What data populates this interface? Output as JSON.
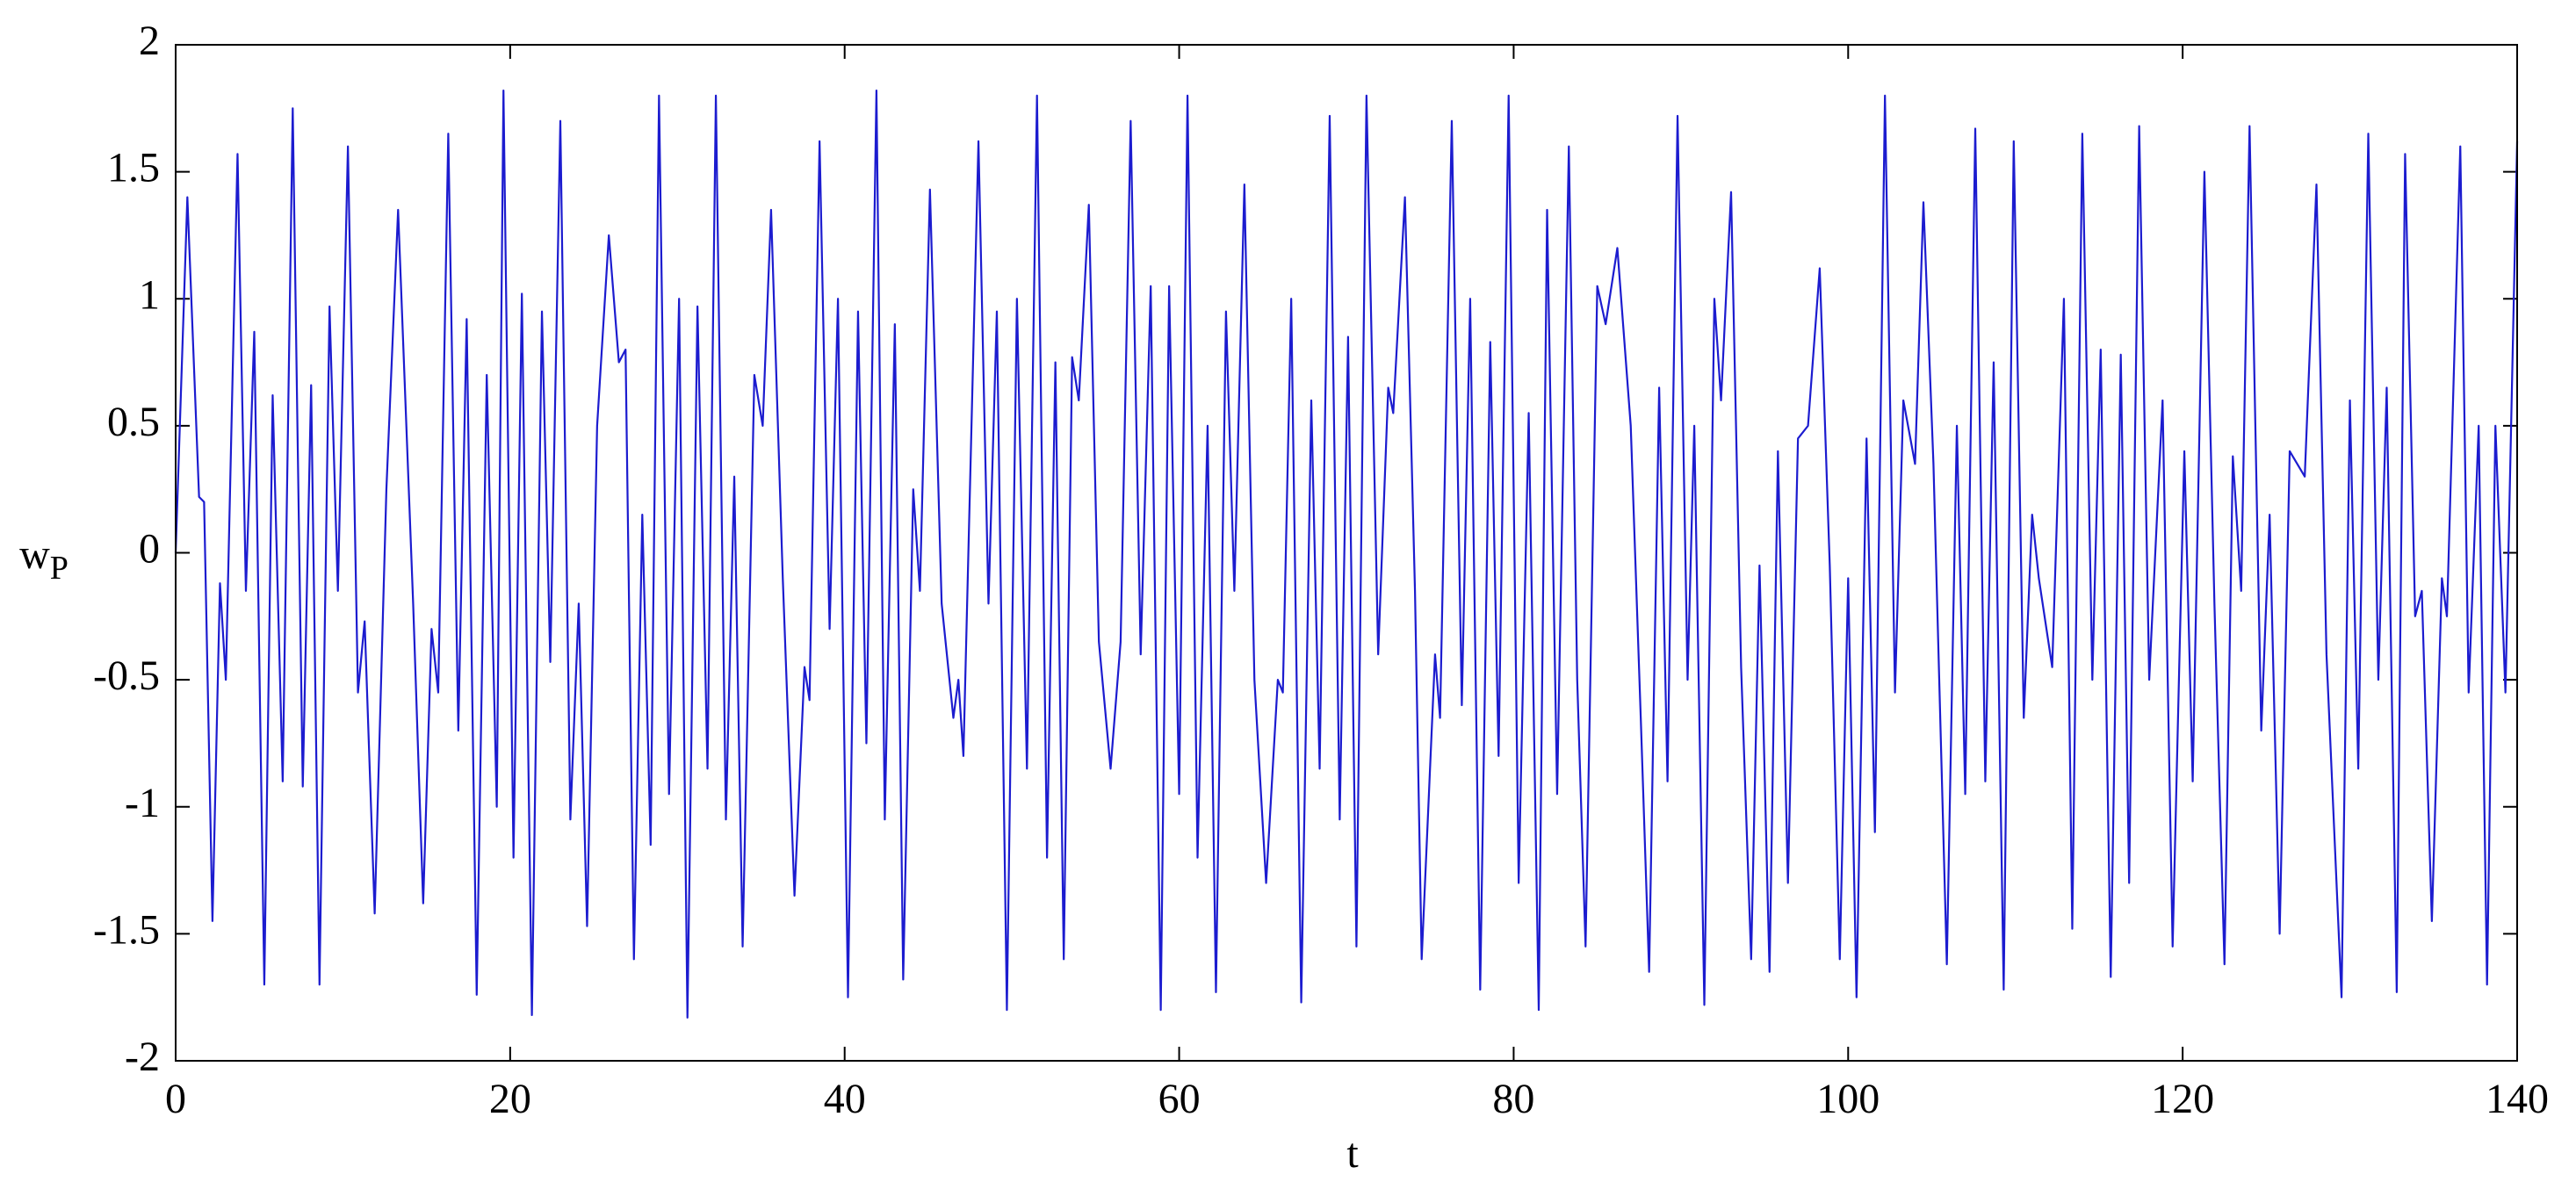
{
  "chart_data": {
    "type": "line",
    "xlabel": "t",
    "ylabel": "w",
    "ylabel_subscript": "P",
    "color": "#1c1ccf",
    "xlim": [
      0,
      140
    ],
    "ylim": [
      -2,
      2
    ],
    "xticks": [
      0,
      20,
      40,
      60,
      80,
      100,
      120,
      140
    ],
    "yticks": [
      -2,
      -1.5,
      -1,
      -0.5,
      0,
      0.5,
      1,
      1.5,
      2
    ],
    "grid": false,
    "x": [
      0,
      0.7,
      1.4,
      1.7,
      2.2,
      2.65,
      3.0,
      3.7,
      4.2,
      4.7,
      5.3,
      5.8,
      6.4,
      7.0,
      7.6,
      8.1,
      8.6,
      9.2,
      9.7,
      10.3,
      10.9,
      11.3,
      11.9,
      12.6,
      13.3,
      14.2,
      14.8,
      15.3,
      15.7,
      16.3,
      16.9,
      17.4,
      18.0,
      18.6,
      19.2,
      19.6,
      20.2,
      20.7,
      21.3,
      21.9,
      22.4,
      23.0,
      23.6,
      24.1,
      24.6,
      25.2,
      25.9,
      26.5,
      26.9,
      27.4,
      27.9,
      28.4,
      28.9,
      29.5,
      30.1,
      30.6,
      31.2,
      31.8,
      32.3,
      32.9,
      33.4,
      33.9,
      34.6,
      35.1,
      35.6,
      36.3,
      37.0,
      37.6,
      37.9,
      38.5,
      39.1,
      39.6,
      40.2,
      40.8,
      41.3,
      41.9,
      42.4,
      43.0,
      43.5,
      44.1,
      44.5,
      45.1,
      45.8,
      46.5,
      46.8,
      47.1,
      48.0,
      48.6,
      49.1,
      49.7,
      50.3,
      50.9,
      51.5,
      52.1,
      52.6,
      53.1,
      53.6,
      54.0,
      54.6,
      55.2,
      55.9,
      56.5,
      57.1,
      57.7,
      58.3,
      58.9,
      59.4,
      60.0,
      60.5,
      61.1,
      61.7,
      62.2,
      62.8,
      63.3,
      63.9,
      64.5,
      65.2,
      65.9,
      66.2,
      66.7,
      67.3,
      67.9,
      68.4,
      69.0,
      69.6,
      70.1,
      70.6,
      71.2,
      71.9,
      72.5,
      72.8,
      73.5,
      74.1,
      74.5,
      75.3,
      75.6,
      76.3,
      76.9,
      77.4,
      78.0,
      78.6,
      79.1,
      79.7,
      80.3,
      80.9,
      81.5,
      82.0,
      82.6,
      83.3,
      83.8,
      84.3,
      85.0,
      85.5,
      86.2,
      87.0,
      87.6,
      88.1,
      88.7,
      89.2,
      89.8,
      90.4,
      90.8,
      91.4,
      92.0,
      92.4,
      93.0,
      93.6,
      94.2,
      94.7,
      95.3,
      95.8,
      96.4,
      97.0,
      97.6,
      98.3,
      98.9,
      99.5,
      100.0,
      100.5,
      101.1,
      101.6,
      102.2,
      102.8,
      103.3,
      104.0,
      104.5,
      105.1,
      105.9,
      106.5,
      107.0,
      107.6,
      108.2,
      108.7,
      109.3,
      109.9,
      110.5,
      111.0,
      111.4,
      112.2,
      112.9,
      113.4,
      114.0,
      114.6,
      115.1,
      115.7,
      116.3,
      116.8,
      117.4,
      118.0,
      118.8,
      119.4,
      120.1,
      120.6,
      121.3,
      121.9,
      122.5,
      123.0,
      123.5,
      124.0,
      124.7,
      125.2,
      125.8,
      126.4,
      127.3,
      128.0,
      128.6,
      129.5,
      130.0,
      130.5,
      131.1,
      131.7,
      132.2,
      132.8,
      133.3,
      133.9,
      134.3,
      134.9,
      135.5,
      135.8,
      136.6,
      137.1,
      137.7,
      138.2,
      138.7,
      139.3,
      140
    ],
    "values": [
      0,
      1.4,
      0.22,
      0.2,
      -1.45,
      -0.12,
      -0.5,
      1.57,
      -0.15,
      0.87,
      -1.7,
      0.62,
      -0.9,
      1.75,
      -0.92,
      0.66,
      -1.7,
      0.97,
      -0.15,
      1.6,
      -0.55,
      -0.27,
      -1.42,
      0.25,
      1.35,
      -0.2,
      -1.38,
      -0.3,
      -0.55,
      1.65,
      -0.7,
      0.92,
      -1.74,
      0.7,
      -1.0,
      1.82,
      -1.2,
      1.02,
      -1.82,
      0.95,
      -0.43,
      1.7,
      -1.05,
      -0.2,
      -1.47,
      0.5,
      1.25,
      0.75,
      0.8,
      -1.6,
      0.15,
      -1.15,
      1.8,
      -0.95,
      1.0,
      -1.83,
      0.97,
      -0.85,
      1.8,
      -1.05,
      0.3,
      -1.55,
      0.7,
      0.5,
      1.35,
      -0.1,
      -1.35,
      -0.45,
      -0.58,
      1.62,
      -0.3,
      1.0,
      -1.75,
      0.95,
      -0.75,
      1.82,
      -1.05,
      0.9,
      -1.68,
      0.25,
      -0.15,
      1.43,
      -0.2,
      -0.65,
      -0.5,
      -0.8,
      1.62,
      -0.2,
      0.95,
      -1.8,
      1.0,
      -0.85,
      1.8,
      -1.2,
      0.75,
      -1.6,
      0.77,
      0.6,
      1.37,
      -0.35,
      -0.85,
      -0.35,
      1.7,
      -0.4,
      1.05,
      -1.8,
      1.05,
      -0.95,
      1.8,
      -1.2,
      0.5,
      -1.73,
      0.95,
      -0.15,
      1.45,
      -0.5,
      -1.3,
      -0.5,
      -0.55,
      1.0,
      -1.77,
      0.6,
      -0.85,
      1.72,
      -1.05,
      0.85,
      -1.55,
      1.8,
      -0.4,
      0.65,
      0.55,
      1.4,
      -0.15,
      -1.6,
      -0.4,
      -0.65,
      1.7,
      -0.6,
      1.0,
      -1.72,
      0.83,
      -0.8,
      1.8,
      -1.3,
      0.55,
      -1.8,
      1.35,
      -0.95,
      1.6,
      -0.5,
      -1.55,
      1.05,
      0.9,
      1.2,
      0.5,
      -0.65,
      -1.65,
      0.65,
      -0.9,
      1.72,
      -0.5,
      0.5,
      -1.78,
      1.0,
      0.6,
      1.42,
      -0.45,
      -1.6,
      -0.05,
      -1.65,
      0.4,
      -1.3,
      0.45,
      0.5,
      1.12,
      -0.05,
      -1.6,
      -0.1,
      -1.75,
      0.45,
      -1.1,
      1.8,
      -0.55,
      0.6,
      0.35,
      1.38,
      0.35,
      -1.62,
      0.5,
      -0.95,
      1.67,
      -0.9,
      0.75,
      -1.72,
      1.62,
      -0.65,
      0.15,
      -0.1,
      -0.45,
      1.0,
      -1.48,
      1.65,
      -0.5,
      0.8,
      -1.67,
      0.78,
      -1.3,
      1.68,
      -0.5,
      0.6,
      -1.55,
      0.4,
      -0.9,
      1.5,
      -0.2,
      -1.62,
      0.38,
      -0.15,
      1.68,
      -0.7,
      0.15,
      -1.5,
      0.4,
      0.3,
      1.45,
      -0.4,
      -1.75,
      0.6,
      -0.85,
      1.65,
      -0.5,
      0.65,
      -1.73,
      1.57,
      -0.25,
      -0.15,
      -1.45,
      -0.1,
      -0.25,
      1.6,
      -0.55,
      0.5,
      -1.7,
      0.5,
      -0.55,
      1.62
    ]
  }
}
